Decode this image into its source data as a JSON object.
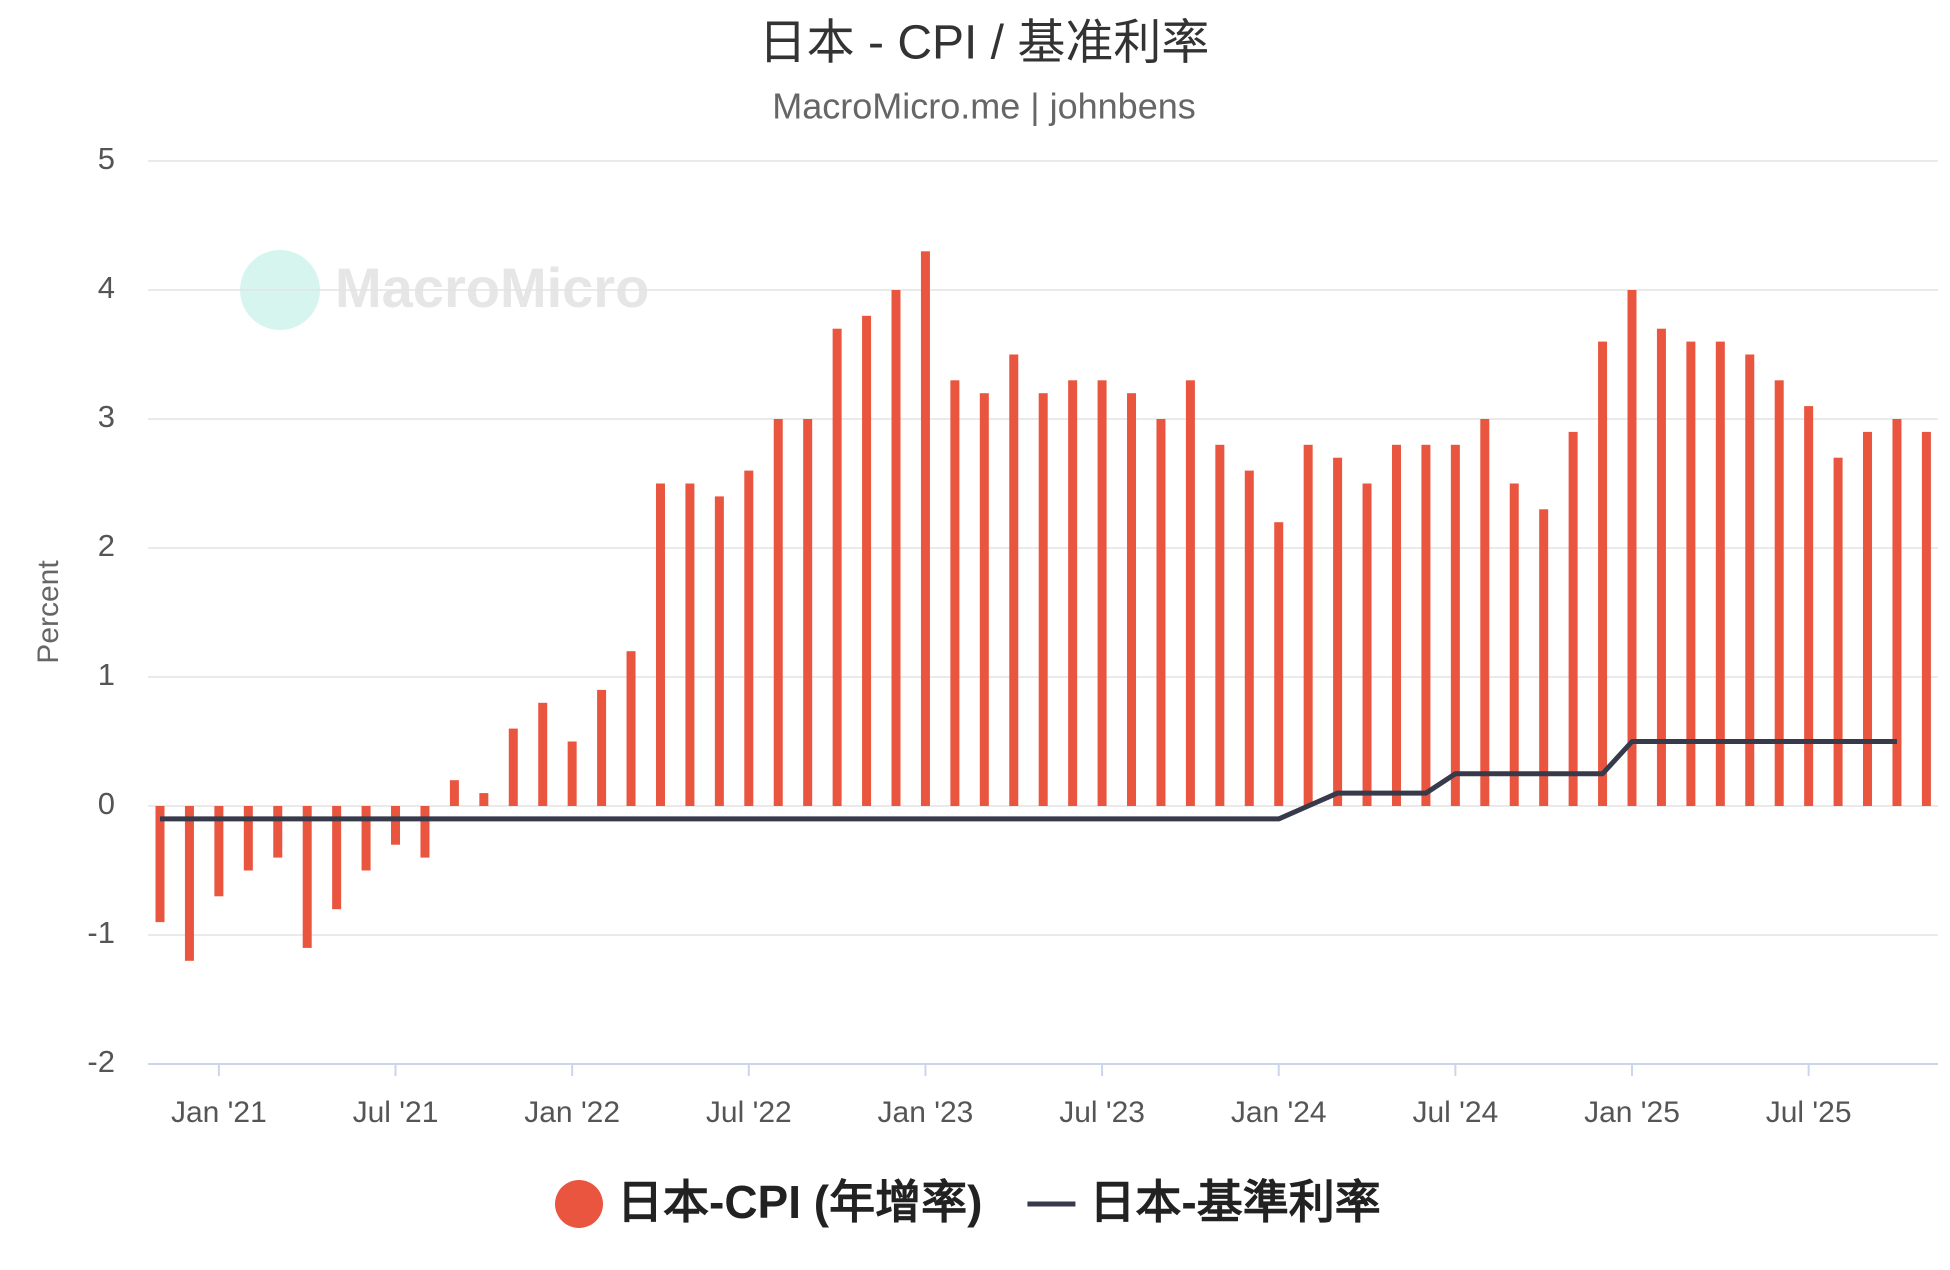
{
  "chart_data": {
    "type": "bar-line",
    "title": "日本 - CPI / 基准利率",
    "subtitle": "MacroMicro.me | johnbens",
    "watermark": "MacroMicro",
    "y_label": "Percent",
    "categories": [
      null,
      null,
      "Jan '21",
      null,
      null,
      null,
      null,
      null,
      "Jul '21",
      null,
      null,
      null,
      null,
      null,
      "Jan '22",
      null,
      null,
      null,
      null,
      null,
      "Jul '22",
      null,
      null,
      null,
      null,
      null,
      "Jan '23",
      null,
      null,
      null,
      null,
      null,
      "Jul '23",
      null,
      null,
      null,
      null,
      null,
      "Jan '24",
      null,
      null,
      null,
      null,
      null,
      "Jul '24",
      null,
      null,
      null,
      null,
      null,
      "Jan '25",
      null,
      null,
      null,
      null,
      null,
      "Jul '25",
      null,
      null,
      null,
      null
    ],
    "series": [
      {
        "name": "日本-CPI (年增率)",
        "type": "bar",
        "color": "#e9553f",
        "values": [
          -0.9,
          -1.2,
          -0.7,
          -0.5,
          -0.4,
          -1.1,
          -0.8,
          -0.5,
          -0.3,
          -0.4,
          0.2,
          0.1,
          0.6,
          0.8,
          0.5,
          0.9,
          1.2,
          2.5,
          2.5,
          2.4,
          2.6,
          3.0,
          3.0,
          3.7,
          3.8,
          4.0,
          4.3,
          3.3,
          3.2,
          3.5,
          3.2,
          3.3,
          3.3,
          3.2,
          3.0,
          3.3,
          2.8,
          2.6,
          2.2,
          2.8,
          2.7,
          2.5,
          2.8,
          2.8,
          2.8,
          3.0,
          2.5,
          2.3,
          2.9,
          3.6,
          4.0,
          3.7,
          3.6,
          3.6,
          3.5,
          3.3,
          3.1,
          2.7,
          2.9,
          3.0,
          2.9
        ]
      },
      {
        "name": "日本-基準利率",
        "type": "line",
        "color": "#363a4a",
        "values": [
          -0.1,
          -0.1,
          -0.1,
          -0.1,
          -0.1,
          -0.1,
          -0.1,
          -0.1,
          -0.1,
          -0.1,
          -0.1,
          -0.1,
          -0.1,
          -0.1,
          -0.1,
          -0.1,
          -0.1,
          -0.1,
          -0.1,
          -0.1,
          -0.1,
          -0.1,
          -0.1,
          -0.1,
          -0.1,
          -0.1,
          -0.1,
          -0.1,
          -0.1,
          -0.1,
          -0.1,
          -0.1,
          -0.1,
          -0.1,
          -0.1,
          -0.1,
          -0.1,
          -0.1,
          -0.1,
          0,
          0.1,
          0.1,
          0.1,
          0.1,
          0.25,
          0.25,
          0.25,
          0.25,
          0.25,
          0.25,
          0.5,
          0.5,
          0.5,
          0.5,
          0.5,
          0.5,
          0.5,
          0.5,
          0.5,
          0.5,
          null
        ]
      }
    ],
    "ylim": [
      -2,
      5
    ],
    "yticks": [
      -2,
      -1,
      0,
      1,
      2,
      3,
      4,
      5
    ],
    "grid": true,
    "legend": "bottom"
  }
}
